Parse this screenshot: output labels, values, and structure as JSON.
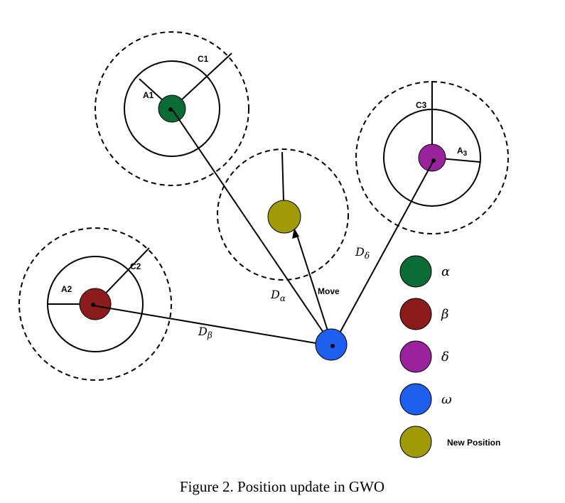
{
  "caption": "Figure 2. Position update in GWO",
  "labels": {
    "c1": "C1",
    "c2": "C2",
    "c3": "C3",
    "a1": "A1",
    "a2": "A2",
    "a3_main": "A",
    "a3_sub": "3",
    "move": "Move",
    "d_alpha_main": "D",
    "d_alpha_sub": "α",
    "d_beta_main": "D",
    "d_beta_sub": "β",
    "d_delta_main": "D",
    "d_delta_sub": "δ"
  },
  "legend": [
    {
      "label": "α",
      "color": "#0b6b35",
      "name": "alpha"
    },
    {
      "label": "β",
      "color": "#8c1c1c",
      "name": "beta"
    },
    {
      "label": "δ",
      "color": "#9a239d",
      "name": "delta"
    },
    {
      "label": "ω",
      "color": "#1f5ff0",
      "name": "omega"
    },
    {
      "label": "New Position",
      "color": "#a09a05",
      "name": "new-position"
    }
  ],
  "colors": {
    "alpha": "#0b6b35",
    "beta": "#8c1c1c",
    "delta": "#9a239d",
    "omega": "#1f5ff0",
    "new_position": "#a09a05"
  }
}
